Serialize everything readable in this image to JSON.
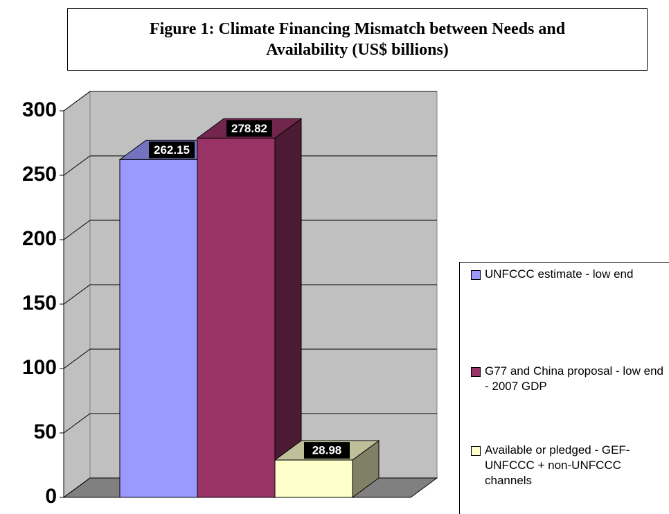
{
  "chart_data": {
    "type": "bar",
    "title": "Figure 1: Climate Financing Mismatch between Needs and Availability (US$ billions)",
    "ylim": [
      0,
      300
    ],
    "yticks": [
      0,
      50,
      100,
      150,
      200,
      250,
      300
    ],
    "grid": true,
    "legend": "right",
    "series": [
      {
        "name": "UNFCCC estimate - low end",
        "color": "#9999ff",
        "values": [
          262.15
        ]
      },
      {
        "name": "G77 and China proposal - low end - 2007 GDP",
        "color": "#993366",
        "values": [
          278.82
        ]
      },
      {
        "name": "Available or pledged - GEF-UNFCCC + non-UNFCCC channels",
        "color": "#ffffcc",
        "values": [
          28.98
        ]
      }
    ]
  }
}
